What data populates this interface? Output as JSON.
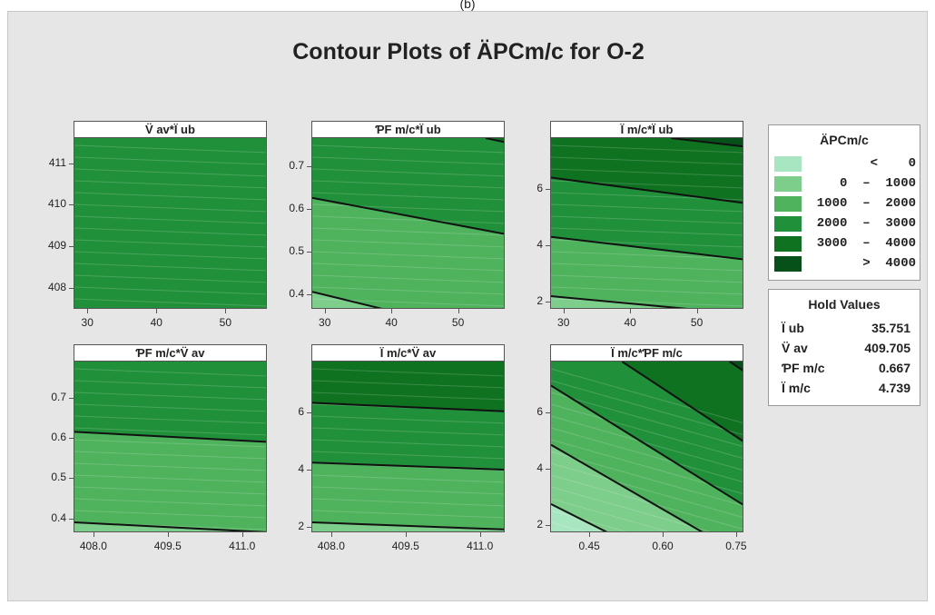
{
  "figure_label": "(b)",
  "chart_data": {
    "type": "contour",
    "title": "Contour Plots of ÄPCm/c for O-2",
    "legend": {
      "title": "ÄPCm/c",
      "items": [
        {
          "label": "<    0",
          "color": "#a8e6c2"
        },
        {
          "label": "0  –  1000",
          "color": "#7dcd8b"
        },
        {
          "label": "1000  –  2000",
          "color": "#4fb25d"
        },
        {
          "label": "2000  –  3000",
          "color": "#21903a"
        },
        {
          "label": "3000  –  4000",
          "color": "#0e7220"
        },
        {
          "label": ">  4000",
          "color": "#06511a"
        }
      ]
    },
    "hold_values": {
      "title": "Hold Values",
      "items": [
        {
          "name": "Ï ub",
          "value": "35.751"
        },
        {
          "name": "V̈ av",
          "value": "409.705"
        },
        {
          "name": "ƤF m/c",
          "value": "0.667"
        },
        {
          "name": "Ï m/c",
          "value": "4.739"
        }
      ]
    },
    "panels": [
      {
        "strip": "V̈ av*Ï ub",
        "xlim": [
          28,
          56
        ],
        "ylim": [
          407.5,
          411.6
        ],
        "xticks": [
          30,
          40,
          50
        ],
        "yticks": [
          408,
          409,
          410,
          411
        ],
        "xtick_labels": [
          "30",
          "40",
          "50"
        ],
        "ytick_labels": [
          "408",
          "409",
          "410",
          "411"
        ],
        "regions": [
          {
            "level": "2000 – 3000",
            "boundary": null
          }
        ],
        "contours": []
      },
      {
        "strip": "ƤF m/c*Ï ub",
        "xlim": [
          28,
          57
        ],
        "ylim": [
          0.365,
          0.765
        ],
        "xticks": [
          30,
          40,
          50
        ],
        "yticks": [
          0.4,
          0.5,
          0.6,
          0.7
        ],
        "xtick_labels": [
          "30",
          "40",
          "50"
        ],
        "ytick_labels": [
          "0.4",
          "0.5",
          "0.6",
          "0.7"
        ],
        "regions": [
          {
            "level": "0 – 1000",
            "boundary": [
              [
                28,
                0.405
              ],
              [
                38.5,
                0.365
              ]
            ]
          },
          {
            "level": "1000 – 2000",
            "boundary": [
              [
                28,
                0.625
              ],
              [
                57,
                0.54
              ]
            ]
          },
          {
            "level": "2000 – 3000",
            "boundary": [
              [
                54,
                0.765
              ],
              [
                57,
                0.755
              ]
            ]
          },
          {
            "level": "3000 – 4000",
            "boundary": null
          }
        ],
        "contours": [
          [
            [
              28,
              0.405
            ],
            [
              38.5,
              0.365
            ]
          ],
          [
            [
              28,
              0.625
            ],
            [
              57,
              0.54
            ]
          ],
          [
            [
              54,
              0.765
            ],
            [
              57,
              0.755
            ]
          ]
        ]
      },
      {
        "strip": "Ï m/c*Ï ub",
        "xlim": [
          28,
          57
        ],
        "ylim": [
          1.75,
          7.8
        ],
        "xticks": [
          30,
          40,
          50
        ],
        "yticks": [
          2,
          4,
          6
        ],
        "xtick_labels": [
          "30",
          "40",
          "50"
        ],
        "ytick_labels": [
          "2",
          "4",
          "6"
        ],
        "regions": [
          {
            "level": "0 – 1000",
            "boundary": [
              [
                28,
                2.2
              ],
              [
                48.5,
                1.75
              ]
            ]
          },
          {
            "level": "1000 – 2000",
            "boundary": [
              [
                28,
                4.3
              ],
              [
                57,
                3.5
              ]
            ]
          },
          {
            "level": "2000 – 3000",
            "boundary": [
              [
                28,
                6.4
              ],
              [
                57,
                5.5
              ]
            ]
          },
          {
            "level": "3000 – 4000",
            "boundary": [
              [
                46,
                7.8
              ],
              [
                57,
                7.5
              ]
            ]
          },
          {
            "level": "> 4000",
            "boundary": null
          }
        ],
        "contours": [
          [
            [
              28,
              2.2
            ],
            [
              48.5,
              1.75
            ]
          ],
          [
            [
              28,
              4.3
            ],
            [
              57,
              3.5
            ]
          ],
          [
            [
              28,
              6.4
            ],
            [
              57,
              5.5
            ]
          ],
          [
            [
              46,
              7.8
            ],
            [
              57,
              7.5
            ]
          ]
        ]
      },
      {
        "strip": "ƤF m/c*V̈ av",
        "xlim": [
          407.6,
          411.5
        ],
        "ylim": [
          0.365,
          0.79
        ],
        "xticks": [
          408.0,
          409.5,
          411.0
        ],
        "yticks": [
          0.4,
          0.5,
          0.6,
          0.7
        ],
        "xtick_labels": [
          "408.0",
          "409.5",
          "411.0"
        ],
        "ytick_labels": [
          "0.4",
          "0.5",
          "0.6",
          "0.7"
        ],
        "regions": [
          {
            "level": "0 – 1000",
            "boundary": [
              [
                407.6,
                0.39
              ],
              [
                411.5,
                0.365
              ]
            ]
          },
          {
            "level": "1000 – 2000",
            "boundary": [
              [
                407.6,
                0.615
              ],
              [
                411.5,
                0.59
              ]
            ]
          },
          {
            "level": "2000 – 3000",
            "boundary": null
          }
        ],
        "contours": [
          [
            [
              407.6,
              0.39
            ],
            [
              411.5,
              0.365
            ]
          ],
          [
            [
              407.6,
              0.615
            ],
            [
              411.5,
              0.59
            ]
          ]
        ]
      },
      {
        "strip": "Ï m/c*V̈ av",
        "xlim": [
          407.6,
          411.5
        ],
        "ylim": [
          1.8,
          7.8
        ],
        "xticks": [
          408.0,
          409.5,
          411.0
        ],
        "yticks": [
          2,
          4,
          6
        ],
        "xtick_labels": [
          "408.0",
          "409.5",
          "411.0"
        ],
        "ytick_labels": [
          "2",
          "4",
          "6"
        ],
        "regions": [
          {
            "level": "0 – 1000",
            "boundary": [
              [
                407.6,
                2.15
              ],
              [
                411.5,
                1.9
              ]
            ]
          },
          {
            "level": "1000 – 2000",
            "boundary": [
              [
                407.6,
                4.25
              ],
              [
                411.5,
                4.0
              ]
            ]
          },
          {
            "level": "2000 – 3000",
            "boundary": [
              [
                407.6,
                6.35
              ],
              [
                411.5,
                6.05
              ]
            ]
          },
          {
            "level": "3000 – 4000",
            "boundary": null
          }
        ],
        "contours": [
          [
            [
              407.6,
              2.15
            ],
            [
              411.5,
              1.9
            ]
          ],
          [
            [
              407.6,
              4.25
            ],
            [
              411.5,
              4.0
            ]
          ],
          [
            [
              407.6,
              6.35
            ],
            [
              411.5,
              6.05
            ]
          ]
        ]
      },
      {
        "strip": "Ï m/c*ƤF m/c",
        "xlim": [
          0.37,
          0.765
        ],
        "ylim": [
          1.75,
          7.8
        ],
        "xticks": [
          0.45,
          0.6,
          0.75
        ],
        "yticks": [
          2,
          4,
          6
        ],
        "xtick_labels": [
          "0.45",
          "0.60",
          "0.75"
        ],
        "ytick_labels": [
          "2",
          "4",
          "6"
        ],
        "regions": [
          {
            "level": "< 0",
            "boundary": [
              [
                0.37,
                2.75
              ],
              [
                0.485,
                1.75
              ]
            ]
          },
          {
            "level": "0 – 1000",
            "boundary": [
              [
                0.37,
                4.85
              ],
              [
                0.68,
                1.75
              ]
            ]
          },
          {
            "level": "1000 – 2000",
            "boundary": [
              [
                0.37,
                6.95
              ],
              [
                0.765,
                2.7
              ]
            ]
          },
          {
            "level": "2000 – 3000",
            "boundary": [
              [
                0.515,
                7.8
              ],
              [
                0.765,
                4.95
              ]
            ]
          },
          {
            "level": "3000 – 4000",
            "boundary": [
              [
                0.735,
                7.8
              ],
              [
                0.765,
                7.45
              ]
            ]
          },
          {
            "level": "> 4000",
            "boundary": null
          }
        ],
        "contours": [
          [
            [
              0.37,
              2.75
            ],
            [
              0.485,
              1.75
            ]
          ],
          [
            [
              0.37,
              4.85
            ],
            [
              0.68,
              1.75
            ]
          ],
          [
            [
              0.37,
              6.95
            ],
            [
              0.765,
              2.7
            ]
          ],
          [
            [
              0.515,
              7.8
            ],
            [
              0.765,
              4.95
            ]
          ],
          [
            [
              0.735,
              7.8
            ],
            [
              0.765,
              7.45
            ]
          ]
        ]
      }
    ]
  }
}
